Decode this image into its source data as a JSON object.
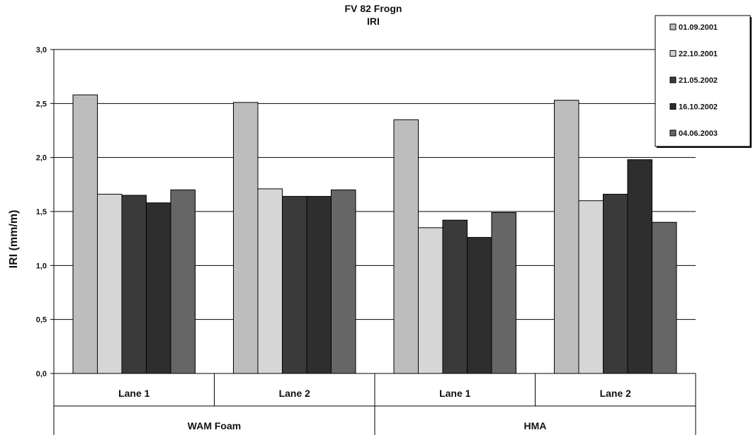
{
  "chart_data": {
    "type": "bar",
    "title": "FV 82 Frogn",
    "subtitle": "IRI",
    "ylabel": "IRI (mm/m)",
    "ylim": [
      0,
      3.0
    ],
    "yticks": [
      "0,0",
      "0,5",
      "1,0",
      "1,5",
      "2,0",
      "2,5",
      "3,0"
    ],
    "grid": true,
    "legend_position": "top-right",
    "groups": [
      {
        "name": "WAM Foam",
        "categories": [
          "Lane 1",
          "Lane 2"
        ]
      },
      {
        "name": "HMA",
        "categories": [
          "Lane 1",
          "Lane 2"
        ]
      }
    ],
    "categories": [
      "Lane 1",
      "Lane 2",
      "Lane 1",
      "Lane 2"
    ],
    "series": [
      {
        "name": "01.09.2001",
        "color": "#bdbdbd",
        "values": [
          2.58,
          2.51,
          2.35,
          2.53
        ]
      },
      {
        "name": "22.10.2001",
        "color": "#d6d6d6",
        "values": [
          1.66,
          1.71,
          1.35,
          1.6
        ]
      },
      {
        "name": "21.05.2002",
        "color": "#3a3a3a",
        "values": [
          1.65,
          1.64,
          1.42,
          1.66
        ]
      },
      {
        "name": "16.10.2002",
        "color": "#2e2e2e",
        "values": [
          1.58,
          1.64,
          1.26,
          1.98
        ]
      },
      {
        "name": "04.06.2003",
        "color": "#666666",
        "values": [
          1.7,
          1.7,
          1.49,
          1.4
        ]
      }
    ]
  }
}
